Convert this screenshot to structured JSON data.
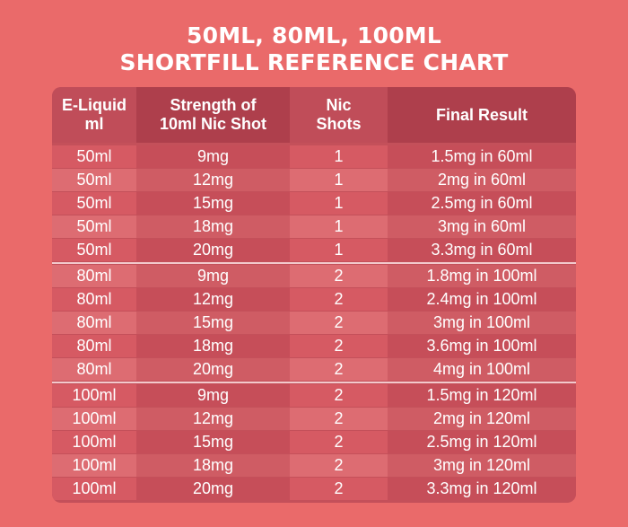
{
  "title_line1": "50ML, 80ML, 100ML",
  "title_line2": "SHORTFILL REFERENCE CHART",
  "headers": [
    "E-Liquid ml",
    "Strength of 10ml Nic Shot",
    "Nic Shots",
    "Final Result"
  ],
  "header_lines": [
    [
      "E-Liquid",
      "ml"
    ],
    [
      "Strength of",
      "10ml Nic Shot"
    ],
    [
      "Nic",
      "Shots"
    ],
    [
      "Final Result"
    ]
  ],
  "rows": [
    [
      "50ml",
      "9mg",
      "1",
      "1.5mg in 60ml"
    ],
    [
      "50ml",
      "12mg",
      "1",
      "2mg in 60ml"
    ],
    [
      "50ml",
      "15mg",
      "1",
      "2.5mg in 60ml"
    ],
    [
      "50ml",
      "18mg",
      "1",
      "3mg in 60ml"
    ],
    [
      "50ml",
      "20mg",
      "1",
      "3.3mg in 60ml"
    ],
    [
      "80ml",
      "9mg",
      "2",
      "1.8mg in 100ml"
    ],
    [
      "80ml",
      "12mg",
      "2",
      "2.4mg in 100ml"
    ],
    [
      "80ml",
      "15mg",
      "2",
      "3mg in 100ml"
    ],
    [
      "80ml",
      "18mg",
      "2",
      "3.6mg in 100ml"
    ],
    [
      "80ml",
      "20mg",
      "2",
      "4mg in 100ml"
    ],
    [
      "100ml",
      "9mg",
      "2",
      "1.5mg in 120ml"
    ],
    [
      "100ml",
      "12mg",
      "2",
      "2mg in 120ml"
    ],
    [
      "100ml",
      "15mg",
      "2",
      "2.5mg in 120ml"
    ],
    [
      "100ml",
      "18mg",
      "2",
      "3mg in 120ml"
    ],
    [
      "100ml",
      "20mg",
      "2",
      "3.3mg in 120ml"
    ]
  ],
  "colors": {
    "background": "#ea6a6a",
    "header_light": "#c04d59",
    "header_dark": "#ae3f4c",
    "row_a_light": "#d65a63",
    "row_a_dark": "#c64e59",
    "row_b_light": "#dd6c72",
    "row_b_dark": "#cf5c64",
    "divider": "#f2c9cc"
  }
}
